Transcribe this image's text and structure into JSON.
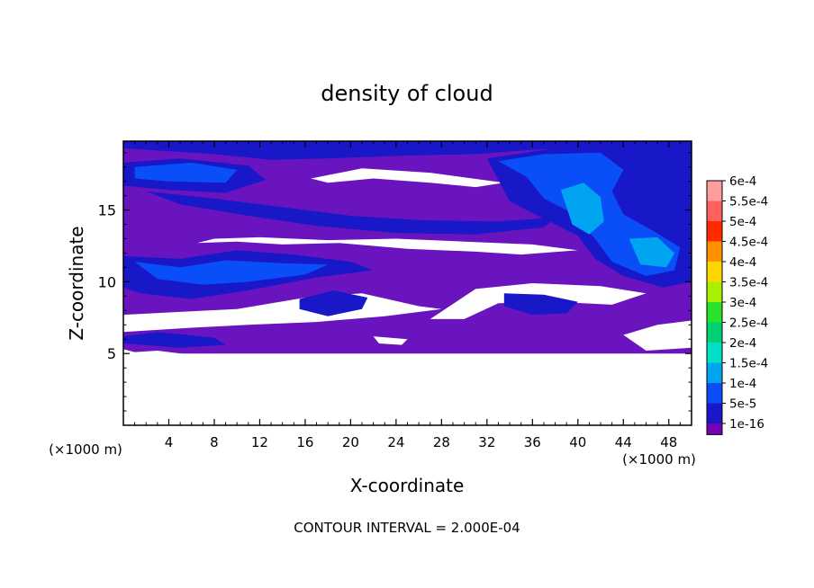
{
  "chart_data": {
    "type": "heatmap",
    "title": "density of cloud",
    "xlabel": "X-coordinate",
    "ylabel": "Z-coordinate",
    "x_unit_label": "(×1000 m)",
    "x_ticks": [
      4,
      8,
      12,
      16,
      20,
      24,
      28,
      32,
      36,
      40,
      44,
      48
    ],
    "y_ticks": [
      5,
      10,
      15
    ],
    "xlim": [
      0,
      50
    ],
    "ylim": [
      0,
      19.8
    ],
    "footer": "CONTOUR INTERVAL = 2.000E-04",
    "colorbar": {
      "labels": [
        "6e-4",
        "5.5e-4",
        "5e-4",
        "4.5e-4",
        "4e-4",
        "3.5e-4",
        "3e-4",
        "2.5e-4",
        "2e-4",
        "1.5e-4",
        "1e-4",
        "5e-5",
        "1e-16"
      ],
      "colors": [
        "#ff9c9c",
        "#ff6060",
        "#ff2a00",
        "#ff9100",
        "#ffd700",
        "#a8f000",
        "#29e229",
        "#00d274",
        "#00e0c8",
        "#00a4f0",
        "#0a4ef8",
        "#1818c8",
        "#7800b4"
      ]
    },
    "regions": [
      {
        "name": "cloud-base",
        "color": "#6a14c0",
        "polygon": [
          [
            0,
            5
          ],
          [
            50,
            5
          ],
          [
            50,
            19.8
          ],
          [
            0,
            19.8
          ]
        ]
      },
      {
        "name": "clear-gap-bottom",
        "color": "#ffffff",
        "polygon": [
          [
            0,
            5.3
          ],
          [
            1,
            5.1
          ],
          [
            3,
            5.2
          ],
          [
            6,
            4.9
          ],
          [
            50,
            4.9
          ],
          [
            50,
            0
          ],
          [
            0,
            0
          ]
        ]
      },
      {
        "name": "clear-gap-1",
        "color": "#ffffff",
        "polygon": [
          [
            16.5,
            17.2
          ],
          [
            21,
            17.9
          ],
          [
            27,
            17.6
          ],
          [
            33.5,
            16.9
          ],
          [
            31,
            16.6
          ],
          [
            27,
            16.9
          ],
          [
            22,
            17.2
          ],
          [
            18,
            16.9
          ]
        ]
      },
      {
        "name": "clear-gap-2",
        "color": "#ffffff",
        "polygon": [
          [
            6.5,
            12.7
          ],
          [
            10,
            12.8
          ],
          [
            14,
            12.6
          ],
          [
            19,
            12.7
          ],
          [
            25,
            12.3
          ],
          [
            31,
            12.1
          ],
          [
            35,
            11.9
          ],
          [
            40,
            12.2
          ],
          [
            36,
            12.6
          ],
          [
            30,
            12.8
          ],
          [
            24,
            13.0
          ],
          [
            18,
            12.9
          ],
          [
            12,
            13.1
          ],
          [
            8,
            13.0
          ]
        ]
      },
      {
        "name": "clear-gap-3",
        "color": "#ffffff",
        "polygon": [
          [
            0,
            7.7
          ],
          [
            5,
            7.9
          ],
          [
            10,
            8.1
          ],
          [
            16,
            8.9
          ],
          [
            21,
            9.2
          ],
          [
            26,
            8.3
          ],
          [
            28,
            8.1
          ],
          [
            23,
            7.6
          ],
          [
            17,
            7.2
          ],
          [
            11,
            7.0
          ],
          [
            6,
            6.8
          ],
          [
            0,
            6.5
          ]
        ]
      },
      {
        "name": "clear-gap-4",
        "color": "#ffffff",
        "polygon": [
          [
            27,
            7.4
          ],
          [
            31,
            9.5
          ],
          [
            36,
            9.9
          ],
          [
            42,
            9.7
          ],
          [
            46,
            9.2
          ],
          [
            43,
            8.4
          ],
          [
            38,
            8.6
          ],
          [
            33,
            8.5
          ],
          [
            30,
            7.4
          ]
        ]
      },
      {
        "name": "clear-gap-5",
        "color": "#ffffff",
        "polygon": [
          [
            44,
            6.3
          ],
          [
            47,
            7.0
          ],
          [
            50,
            7.3
          ],
          [
            50,
            5.4
          ],
          [
            46,
            5.2
          ]
        ]
      },
      {
        "name": "clear-gap-6",
        "color": "#ffffff",
        "polygon": [
          [
            22,
            6.2
          ],
          [
            25,
            6.0
          ],
          [
            24.5,
            5.6
          ],
          [
            22.5,
            5.7
          ]
        ]
      },
      {
        "name": "low-value-top",
        "color": "#1818c8",
        "polygon": [
          [
            0,
            19.3
          ],
          [
            8,
            18.9
          ],
          [
            13,
            18.5
          ],
          [
            18,
            18.6
          ],
          [
            25,
            18.8
          ],
          [
            31,
            18.9
          ],
          [
            36,
            19.2
          ],
          [
            42,
            19.4
          ],
          [
            50,
            19.1
          ],
          [
            50,
            19.8
          ],
          [
            0,
            19.8
          ]
        ]
      },
      {
        "name": "low-value-left",
        "color": "#1818c8",
        "polygon": [
          [
            0,
            18.3
          ],
          [
            5,
            18.6
          ],
          [
            11,
            18.1
          ],
          [
            12.5,
            17.1
          ],
          [
            9,
            16.2
          ],
          [
            4,
            16.4
          ],
          [
            0,
            16.7
          ]
        ]
      },
      {
        "name": "low-value-mid-band",
        "color": "#1818c8",
        "polygon": [
          [
            2,
            16.3
          ],
          [
            8,
            15.8
          ],
          [
            14,
            15.2
          ],
          [
            20,
            14.6
          ],
          [
            26,
            14.3
          ],
          [
            33,
            14.2
          ],
          [
            38,
            14.5
          ],
          [
            37,
            13.8
          ],
          [
            31,
            13.3
          ],
          [
            24,
            13.4
          ],
          [
            17,
            13.9
          ],
          [
            11,
            14.6
          ],
          [
            5,
            15.4
          ]
        ]
      },
      {
        "name": "low-value-right-core",
        "color": "#1818c8",
        "polygon": [
          [
            32,
            18.6
          ],
          [
            38,
            19.3
          ],
          [
            44,
            19.6
          ],
          [
            50,
            19.3
          ],
          [
            50,
            10.0
          ],
          [
            47.5,
            9.6
          ],
          [
            44,
            10.4
          ],
          [
            41.5,
            11.6
          ],
          [
            40,
            13.2
          ],
          [
            37,
            14.4
          ],
          [
            34,
            15.6
          ],
          [
            33,
            17.1
          ]
        ]
      },
      {
        "name": "low-value-left-lobe",
        "color": "#1818c8",
        "polygon": [
          [
            0,
            11.8
          ],
          [
            5,
            11.6
          ],
          [
            10,
            12.2
          ],
          [
            15,
            11.9
          ],
          [
            20,
            11.4
          ],
          [
            22,
            10.8
          ],
          [
            17,
            10.3
          ],
          [
            11,
            9.4
          ],
          [
            6,
            8.8
          ],
          [
            1.5,
            9.2
          ],
          [
            0,
            9.6
          ]
        ]
      },
      {
        "name": "low-value-blob-1",
        "color": "#1818c8",
        "polygon": [
          [
            15.5,
            8.8
          ],
          [
            18.5,
            9.4
          ],
          [
            21.5,
            8.9
          ],
          [
            21,
            8.1
          ],
          [
            18,
            7.6
          ],
          [
            15.5,
            8.1
          ]
        ]
      },
      {
        "name": "low-value-blob-2",
        "color": "#1818c8",
        "polygon": [
          [
            33.5,
            9.2
          ],
          [
            37,
            9.1
          ],
          [
            40,
            8.6
          ],
          [
            39,
            7.8
          ],
          [
            36,
            7.7
          ],
          [
            33.5,
            8.3
          ]
        ]
      },
      {
        "name": "low-value-blob-3",
        "color": "#1818c8",
        "polygon": [
          [
            0,
            6.2
          ],
          [
            3,
            6.5
          ],
          [
            8,
            6.1
          ],
          [
            9,
            5.6
          ],
          [
            5,
            5.4
          ],
          [
            0,
            5.7
          ]
        ]
      },
      {
        "name": "mid-value-right",
        "color": "#0a4ef8",
        "polygon": [
          [
            33,
            18.4
          ],
          [
            37,
            18.9
          ],
          [
            42,
            19.0
          ],
          [
            44,
            17.8
          ],
          [
            43,
            16.3
          ],
          [
            44,
            14.7
          ],
          [
            46.5,
            13.6
          ],
          [
            49,
            12.4
          ],
          [
            48.5,
            10.8
          ],
          [
            46,
            10.4
          ],
          [
            43,
            11.4
          ],
          [
            41.5,
            13.0
          ],
          [
            39.5,
            14.8
          ],
          [
            37,
            15.8
          ],
          [
            35.5,
            17.3
          ]
        ]
      },
      {
        "name": "mid-value-left",
        "color": "#0a4ef8",
        "polygon": [
          [
            1,
            11.4
          ],
          [
            5,
            11.0
          ],
          [
            9,
            11.5
          ],
          [
            14,
            11.3
          ],
          [
            18,
            11.2
          ],
          [
            16,
            10.5
          ],
          [
            11,
            10.0
          ],
          [
            7,
            9.8
          ],
          [
            3,
            10.2
          ]
        ]
      },
      {
        "name": "mid-value-top",
        "color": "#0a4ef8",
        "polygon": [
          [
            1,
            18.0
          ],
          [
            6,
            18.3
          ],
          [
            10,
            17.8
          ],
          [
            9,
            16.9
          ],
          [
            4,
            17.0
          ],
          [
            1,
            17.2
          ]
        ]
      },
      {
        "name": "high-value-core",
        "color": "#00a4f0",
        "polygon": [
          [
            38.5,
            16.4
          ],
          [
            40.5,
            16.9
          ],
          [
            42,
            15.9
          ],
          [
            42.3,
            14.2
          ],
          [
            41,
            13.3
          ],
          [
            39.5,
            14.0
          ]
        ]
      },
      {
        "name": "high-value-core-2",
        "color": "#00a4f0",
        "polygon": [
          [
            44.5,
            13.0
          ],
          [
            47,
            13.1
          ],
          [
            48.5,
            12.0
          ],
          [
            47.8,
            11.0
          ],
          [
            45.5,
            11.2
          ]
        ]
      }
    ]
  }
}
